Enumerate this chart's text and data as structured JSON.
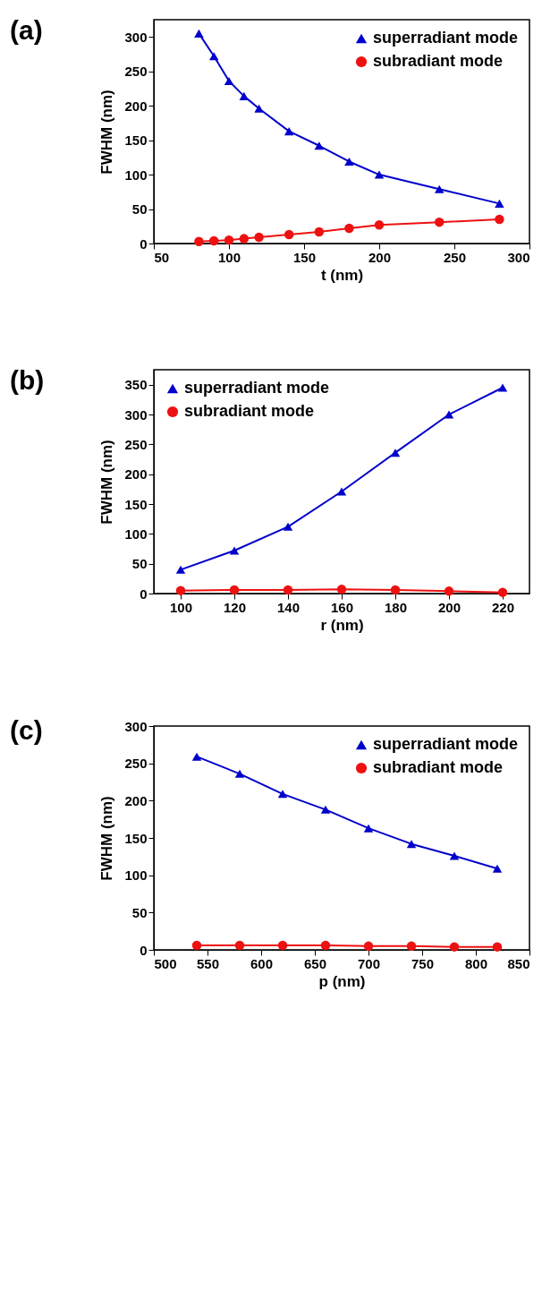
{
  "chart_data": [
    {
      "type": "line",
      "title": "(a)",
      "xlabel": "t (nm)",
      "ylabel": "FWHM (nm)",
      "x": [
        80,
        90,
        100,
        110,
        120,
        140,
        160,
        180,
        200,
        240,
        280
      ],
      "xlim": [
        50,
        300
      ],
      "xticks": [
        50,
        100,
        150,
        200,
        250,
        300
      ],
      "ylim": [
        0,
        325
      ],
      "yticks": [
        0,
        50,
        100,
        150,
        200,
        250,
        300
      ],
      "legend": "top right",
      "grid": false,
      "series": [
        {
          "name": "superradiant mode",
          "color": "#0000cc",
          "marker": "triangle",
          "values": [
            305,
            272,
            236,
            214,
            196,
            163,
            142,
            119,
            100,
            79,
            58
          ]
        },
        {
          "name": "subradiant mode",
          "color": "#ee1111",
          "marker": "circle",
          "values": [
            3,
            4,
            5,
            7,
            9,
            13,
            17,
            22,
            27,
            31,
            35
          ]
        }
      ]
    },
    {
      "type": "line",
      "title": "(b)",
      "xlabel": "r (nm)",
      "ylabel": "FWHM (nm)",
      "x": [
        100,
        120,
        140,
        160,
        180,
        200,
        220
      ],
      "xlim": [
        90,
        230
      ],
      "xticks": [
        100,
        120,
        140,
        160,
        180,
        200,
        220
      ],
      "ylim": [
        0,
        375
      ],
      "yticks": [
        0,
        50,
        100,
        150,
        200,
        250,
        300,
        350
      ],
      "legend": "top left",
      "grid": false,
      "series": [
        {
          "name": "superradiant mode",
          "color": "#0000cc",
          "marker": "triangle",
          "values": [
            40,
            72,
            112,
            171,
            236,
            300,
            345
          ]
        },
        {
          "name": "subradiant mode",
          "color": "#ee1111",
          "marker": "circle",
          "values": [
            5,
            6,
            6,
            7,
            6,
            4,
            2
          ]
        }
      ]
    },
    {
      "type": "line",
      "title": "(c)",
      "xlabel": "p (nm)",
      "ylabel": "FWHM (nm)",
      "x": [
        540,
        580,
        620,
        660,
        700,
        740,
        780,
        820
      ],
      "xlim": [
        500,
        850
      ],
      "xticks": [
        500,
        550,
        600,
        650,
        700,
        750,
        800,
        850
      ],
      "ylim": [
        0,
        300
      ],
      "yticks": [
        0,
        50,
        100,
        150,
        200,
        250,
        300
      ],
      "legend": "top right",
      "grid": false,
      "series": [
        {
          "name": "superradiant mode",
          "color": "#0000cc",
          "marker": "triangle",
          "values": [
            259,
            236,
            209,
            188,
            163,
            142,
            126,
            109
          ]
        },
        {
          "name": "subradiant mode",
          "color": "#ee1111",
          "marker": "circle",
          "values": [
            6,
            6,
            6,
            6,
            5,
            5,
            4,
            4
          ]
        }
      ]
    }
  ]
}
